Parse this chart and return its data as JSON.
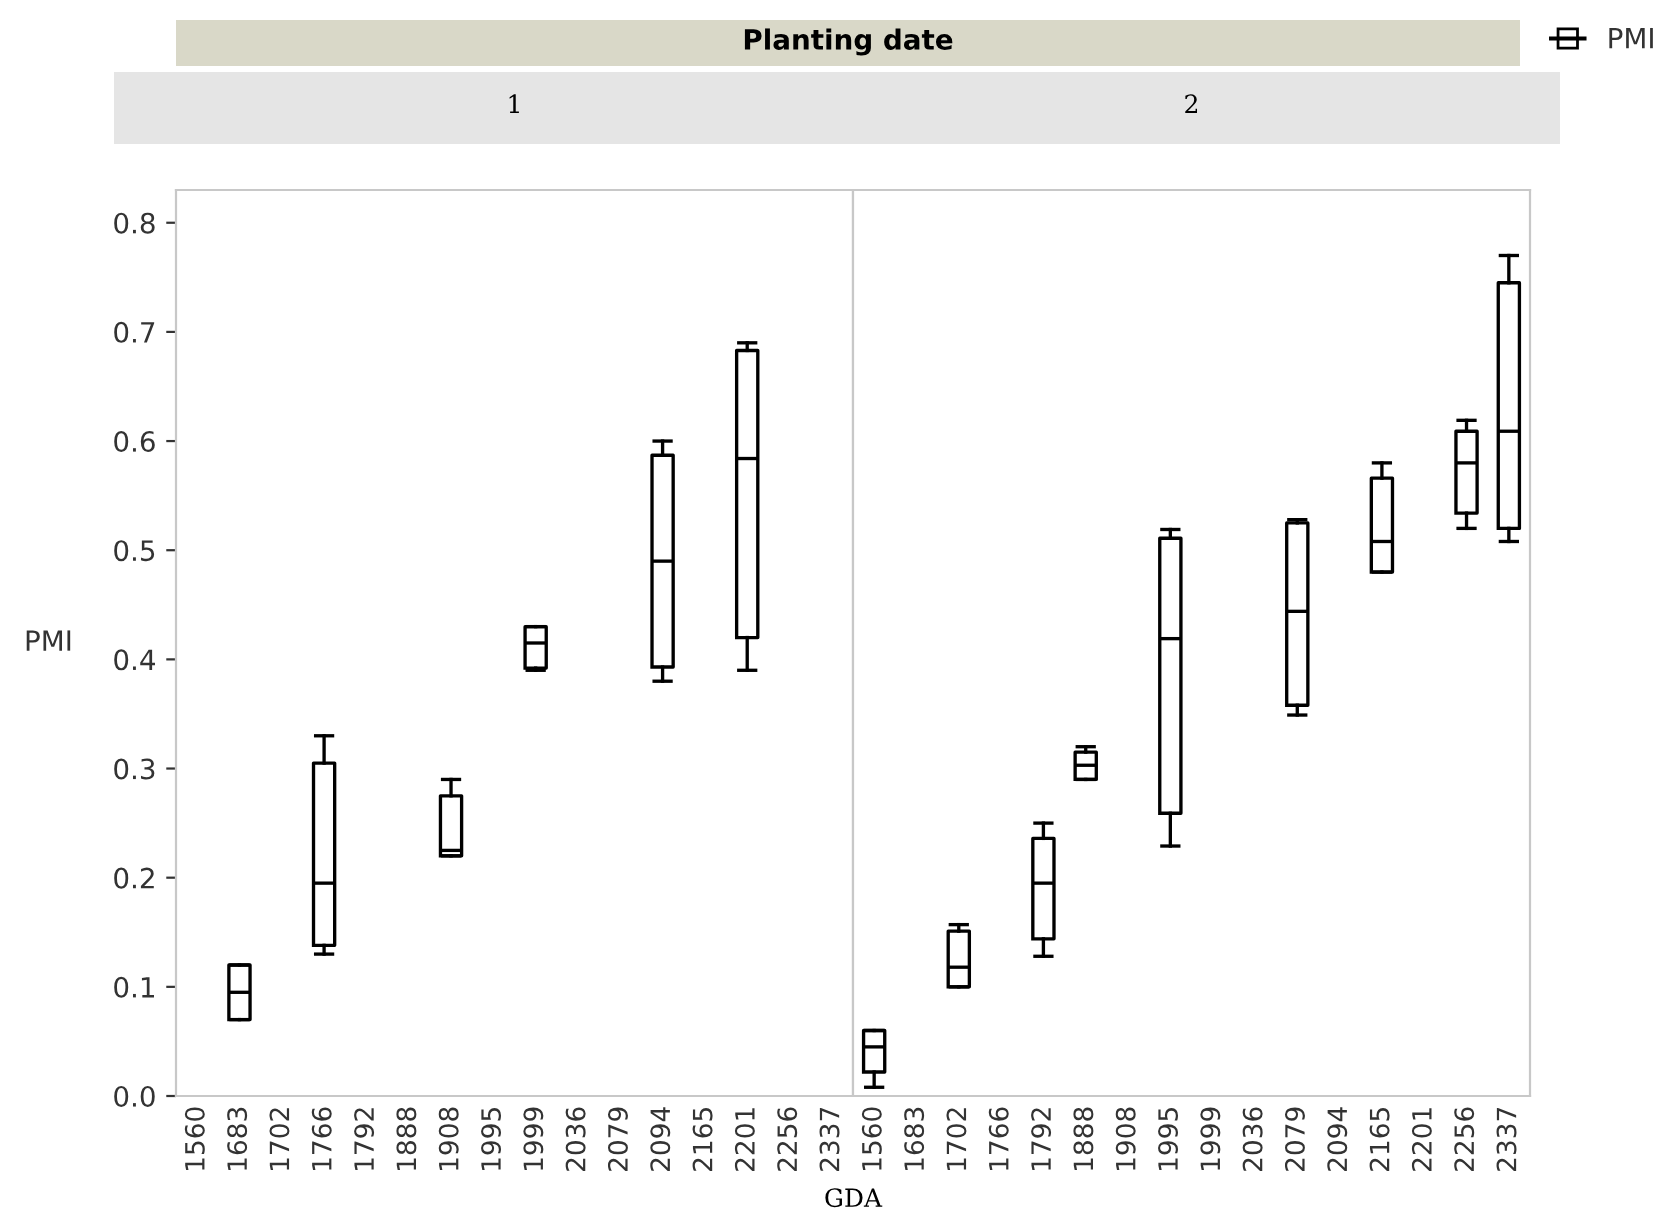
{
  "chart_data": [
    {
      "type": "box",
      "title": "1",
      "ylabel": "PMI",
      "xlabel": "GDA",
      "annotations": [
        "Planting date"
      ],
      "categories": [
        "1560",
        "1683",
        "1702",
        "1766",
        "1792",
        "1888",
        "1908",
        "1995",
        "1999",
        "2036",
        "2079",
        "2094",
        "2165",
        "2201",
        "2256",
        "2337"
      ],
      "ylim": [
        0,
        0.83
      ],
      "yticks": [
        {
          "value": 0,
          "label": "0.0"
        },
        0.1,
        0.2,
        0.3,
        0.4,
        0.5,
        0.6,
        0.7,
        0.8
      ],
      "grid": false,
      "series": [
        {
          "color": "#000000",
          "boxes": [
            null,
            {
              "low": 0.07,
              "q1": 0.07,
              "median": 0.095,
              "q3": 0.12,
              "high": 0.12
            },
            null,
            {
              "low": 0.13,
              "q1": 0.138,
              "median": 0.195,
              "q3": 0.305,
              "high": 0.33
            },
            null,
            null,
            {
              "low": 0.22,
              "q1": 0.22,
              "median": 0.225,
              "q3": 0.275,
              "high": 0.29
            },
            null,
            {
              "low": 0.39,
              "q1": 0.392,
              "median": 0.415,
              "q3": 0.43,
              "high": 0.43
            },
            null,
            null,
            {
              "low": 0.38,
              "q1": 0.393,
              "median": 0.49,
              "q3": 0.587,
              "high": 0.6
            },
            null,
            {
              "low": 0.39,
              "q1": 0.42,
              "median": 0.584,
              "q3": 0.683,
              "high": 0.69
            },
            null,
            null
          ]
        }
      ]
    },
    {
      "type": "box",
      "title": "2",
      "tick_labels": "x",
      "legend": "top right",
      "categories": [
        "1560",
        "1683",
        "1702",
        "1766",
        "1792",
        "1888",
        "1908",
        "1995",
        "1999",
        "2036",
        "2079",
        "2094",
        "2165",
        "2201",
        "2256",
        "2337"
      ],
      "ylim": [
        0,
        0.83
      ],
      "grid": false,
      "series": [
        {
          "name": "PMI",
          "color": "#000000",
          "boxes": [
            {
              "low": 0.008,
              "q1": 0.022,
              "median": 0.045,
              "q3": 0.06,
              "high": 0.06
            },
            null,
            {
              "low": 0.1,
              "q1": 0.1,
              "median": 0.118,
              "q3": 0.151,
              "high": 0.157
            },
            null,
            {
              "low": 0.128,
              "q1": 0.144,
              "median": 0.195,
              "q3": 0.236,
              "high": 0.25
            },
            {
              "low": 0.29,
              "q1": 0.29,
              "median": 0.303,
              "q3": 0.315,
              "high": 0.32
            },
            null,
            {
              "low": 0.229,
              "q1": 0.259,
              "median": 0.419,
              "q3": 0.511,
              "high": 0.519
            },
            null,
            null,
            {
              "low": 0.349,
              "q1": 0.358,
              "median": 0.444,
              "q3": 0.525,
              "high": 0.528
            },
            null,
            {
              "low": 0.48,
              "q1": 0.48,
              "median": 0.508,
              "q3": 0.566,
              "high": 0.58
            },
            null,
            {
              "low": 0.52,
              "q1": 0.534,
              "median": 0.58,
              "q3": 0.609,
              "high": 0.619
            },
            {
              "low": 0.508,
              "q1": 0.52,
              "median": 0.609,
              "q3": 0.745,
              "high": 0.77
            }
          ]
        }
      ]
    }
  ]
}
